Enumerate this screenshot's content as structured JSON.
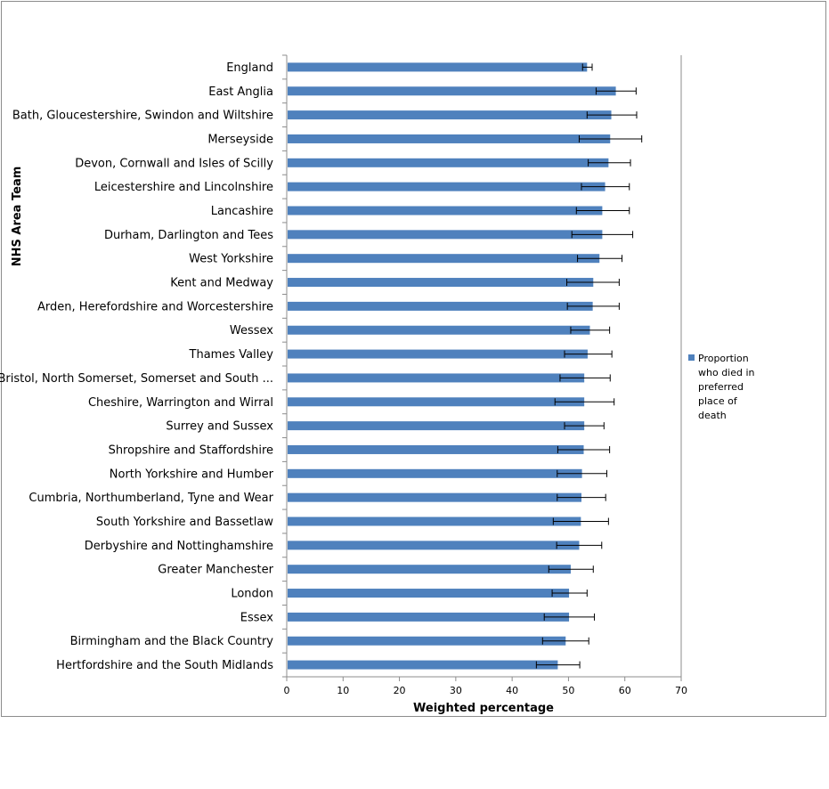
{
  "chart_data": {
    "type": "bar",
    "orientation": "horizontal",
    "title": "",
    "xlabel": "Weighted percentage",
    "ylabel": "NHS Area Team",
    "xlim": [
      0,
      70
    ],
    "xticks": [
      0,
      10,
      20,
      30,
      40,
      50,
      60,
      70
    ],
    "grid": false,
    "legend_position": "right",
    "series": [
      {
        "name": "Proportion who died in preferred place of death",
        "color": "#4f81bd",
        "categories": [
          "England",
          "East Anglia",
          "Bath, Gloucestershire, Swindon and Wiltshire",
          "Merseyside",
          "Devon, Cornwall and Isles of Scilly",
          "Leicestershire and Lincolnshire",
          "Lancashire",
          "Durham, Darlington and Tees",
          "West Yorkshire",
          "Kent and Medway",
          "Arden, Herefordshire and Worcestershire",
          "Wessex",
          "Thames Valley",
          "Bristol, North Somerset, Somerset and South ...",
          "Cheshire, Warrington and Wirral",
          "Surrey and Sussex",
          "Shropshire and Staffordshire",
          "North Yorkshire and Humber",
          "Cumbria, Northumberland, Tyne and Wear",
          "South Yorkshire and Bassetlaw",
          "Derbyshire and Nottinghamshire",
          "Greater Manchester",
          "London",
          "Essex",
          "Birmingham and the Black Country",
          "Hertfordshire and the South  Midlands"
        ],
        "values": [
          53.3,
          58.4,
          57.6,
          57.4,
          57.1,
          56.5,
          56.0,
          56.0,
          55.5,
          54.4,
          54.3,
          53.8,
          53.4,
          52.8,
          52.8,
          52.8,
          52.7,
          52.4,
          52.3,
          52.2,
          51.9,
          50.4,
          50.1,
          50.1,
          49.5,
          48.1
        ],
        "error_low": [
          52.5,
          54.9,
          53.3,
          51.9,
          53.5,
          52.3,
          51.4,
          50.6,
          51.6,
          49.7,
          49.8,
          50.4,
          49.3,
          48.5,
          47.6,
          49.3,
          48.1,
          48.0,
          48.0,
          47.3,
          47.9,
          46.5,
          47.1,
          45.7,
          45.4,
          44.3
        ],
        "error_high": [
          54.2,
          62.0,
          62.1,
          63.0,
          61.0,
          60.8,
          60.8,
          61.4,
          59.5,
          59.0,
          59.0,
          57.3,
          57.7,
          57.4,
          58.1,
          56.3,
          57.3,
          56.8,
          56.6,
          57.1,
          55.9,
          54.4,
          53.3,
          54.6,
          53.6,
          52.0
        ]
      }
    ]
  },
  "legend": {
    "lines": [
      "Proportion",
      "who died in",
      "preferred",
      "place of",
      "death"
    ]
  }
}
